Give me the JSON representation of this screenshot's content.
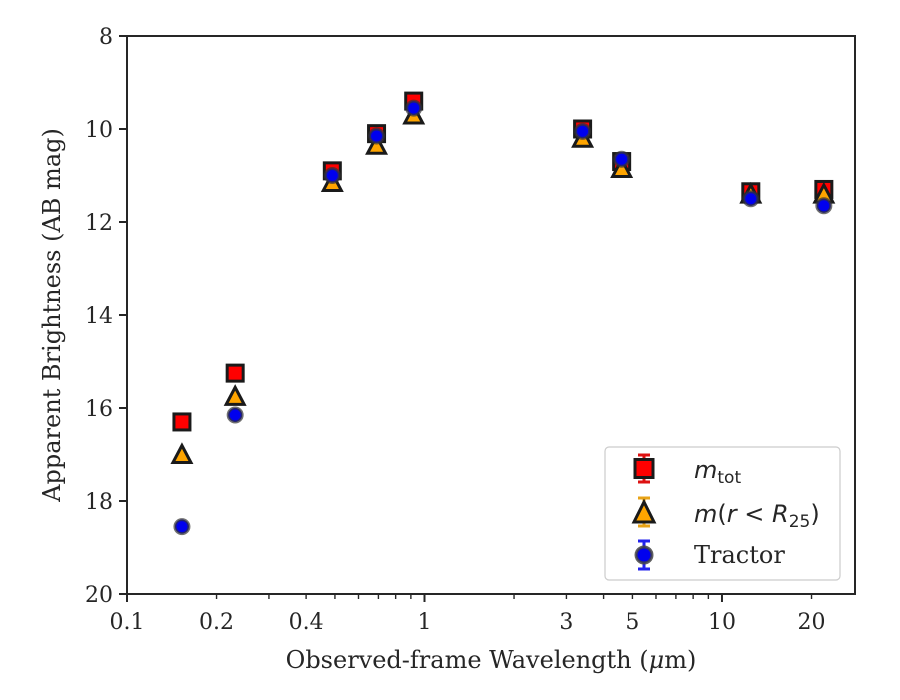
{
  "chart_data": {
    "type": "scatter",
    "xlabel_prefix": "Observed-frame Wavelength (",
    "xlabel_mu": "μ",
    "xlabel_suffix": "m)",
    "ylabel": "Apparent Brightness (AB mag)",
    "xscale": "log",
    "xlim": [
      0.1,
      28
    ],
    "ylim": [
      20,
      8
    ],
    "y_inverted": true,
    "legend_position": "lower-right",
    "x_tick_labels": [
      {
        "value": 0.1,
        "label": "0.1"
      },
      {
        "value": 0.2,
        "label": "0.2"
      },
      {
        "value": 0.4,
        "label": "0.4"
      },
      {
        "value": 1,
        "label": "1"
      },
      {
        "value": 3,
        "label": "3"
      },
      {
        "value": 5,
        "label": "5"
      },
      {
        "value": 10,
        "label": "10"
      },
      {
        "value": 20,
        "label": "20"
      }
    ],
    "y_tick_labels": [
      {
        "value": 8,
        "label": "8"
      },
      {
        "value": 10,
        "label": "10"
      },
      {
        "value": 12,
        "label": "12"
      },
      {
        "value": 14,
        "label": "14"
      },
      {
        "value": 16,
        "label": "16"
      },
      {
        "value": 18,
        "label": "18"
      },
      {
        "value": 20,
        "label": "20"
      }
    ],
    "series": [
      {
        "name": "m_tot",
        "marker": "square",
        "color": "#ff0000",
        "error_color": "#dd1111",
        "x": [
          0.153,
          0.231,
          0.49,
          0.69,
          0.92,
          3.4,
          4.6,
          12.5,
          22.0
        ],
        "y": [
          16.3,
          15.25,
          10.9,
          10.1,
          9.4,
          10.0,
          10.7,
          11.35,
          11.3
        ]
      },
      {
        "name": "m(r < R25)",
        "marker": "triangle",
        "color": "#ffa500",
        "error_color": "#e8a317",
        "x": [
          0.153,
          0.231,
          0.49,
          0.69,
          0.92,
          3.4,
          4.6,
          12.5,
          22.0
        ],
        "y": [
          17.0,
          15.75,
          11.15,
          10.35,
          9.7,
          10.2,
          10.85,
          11.4,
          11.4
        ]
      },
      {
        "name": "Tractor",
        "marker": "circle",
        "color": "#0000ee",
        "error_color": "#2222ee",
        "x": [
          0.153,
          0.231,
          0.49,
          0.69,
          0.92,
          3.4,
          4.6,
          12.5,
          22.0
        ],
        "y": [
          18.55,
          16.15,
          11.0,
          10.15,
          9.55,
          10.05,
          10.65,
          11.5,
          11.65
        ]
      }
    ]
  },
  "legend": {
    "mtot_base": "m",
    "mtot_sub": "tot",
    "mr_m": "m",
    "mr_open": "(",
    "mr_r": "r",
    "mr_lt": " < ",
    "mr_R": "R",
    "mr_sub": "25",
    "mr_close": ")",
    "tractor": "Tractor"
  }
}
